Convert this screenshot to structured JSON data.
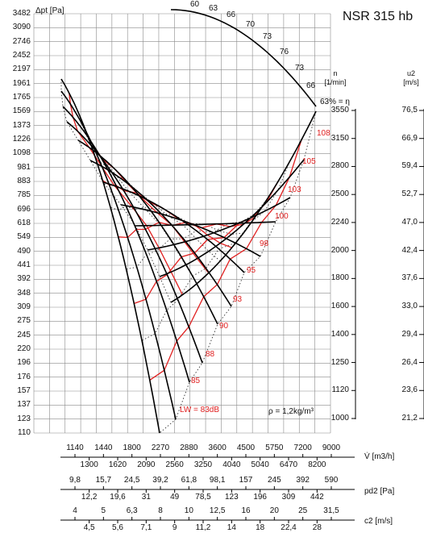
{
  "title": "NSR 315 hb",
  "y_axis_title": "Δpt [Pa]",
  "right_axes": {
    "n_title": "n",
    "n_unit": "[1/min]",
    "u2_title": "u2",
    "u2_unit": "[m/s]",
    "n_values": [
      "3550",
      "3150",
      "2800",
      "2500",
      "2240",
      "2000",
      "1800",
      "1600",
      "1400",
      "1250",
      "1120",
      "1000"
    ],
    "u2_values": [
      "76,5",
      "66,9",
      "59,4",
      "52,7",
      "47,0",
      "42,4",
      "37,6",
      "33,0",
      "29,4",
      "26,4",
      "23,6",
      "21,2"
    ]
  },
  "bottom_scales": {
    "v_title": "V̇ [m3/h]",
    "v_top": [
      "1140",
      "1440",
      "1800",
      "2270",
      "2880",
      "3600",
      "4500",
      "5750",
      "7200",
      "9000"
    ],
    "v_bottom": [
      "1300",
      "1620",
      "2090",
      "2560",
      "3250",
      "4040",
      "5040",
      "6470",
      "8200"
    ],
    "pd2_title": "pd2 [Pa]",
    "pd2_top": [
      "9,8",
      "15,7",
      "24,5",
      "39,2",
      "61,8",
      "98,1",
      "157",
      "245",
      "392",
      "590"
    ],
    "pd2_bottom": [
      "12,2",
      "19,6",
      "31",
      "49",
      "78,5",
      "123",
      "196",
      "309",
      "442"
    ],
    "c2_title": "c2 [m/s]",
    "c2_top": [
      "4",
      "5",
      "6,3",
      "8",
      "10",
      "12,5",
      "16",
      "20",
      "25",
      "31,5"
    ],
    "c2_bottom": [
      "4,5",
      "5,6",
      "7,1",
      "9",
      "11,2",
      "14",
      "18",
      "22,4",
      "28"
    ]
  },
  "annotations": {
    "efficiency_suffix": "63% = η",
    "lw_label": "LW = 83dB",
    "rho_label": "ρ = 1,2kg/m³"
  },
  "colors": {
    "grid": "#8a8a8a",
    "characteristic": "#000000",
    "efficiency_line": "#e02020",
    "db_text": "#e02020"
  },
  "chart_data": {
    "type": "line",
    "title": "NSR 315 hb",
    "ylabel": "Δpt [Pa]",
    "xlabel": "V̇ [m3/h]",
    "x_scale": "log",
    "y_scale": "log",
    "xlim": [
      1020,
      9000
    ],
    "ylim": [
      110,
      3482
    ],
    "y_ticks": [
      3482,
      3090,
      2746,
      2452,
      2197,
      1961,
      1765,
      1569,
      1373,
      1226,
      1098,
      981,
      883,
      785,
      696,
      618,
      549,
      490,
      441,
      392,
      348,
      309,
      275,
      245,
      220,
      196,
      176,
      157,
      137,
      123,
      110
    ],
    "grid": true,
    "speed_curves_n_rpm": [
      3550,
      3150,
      2800,
      2500,
      2240,
      2000,
      1800,
      1600,
      1400,
      1250,
      1120,
      1000
    ],
    "efficiency_labels_pct": [
      60,
      63,
      66,
      70,
      73,
      76,
      73,
      66,
      63
    ],
    "sound_power_db": [
      108,
      105,
      103,
      100,
      98,
      95,
      93,
      90,
      88,
      85,
      83
    ]
  }
}
